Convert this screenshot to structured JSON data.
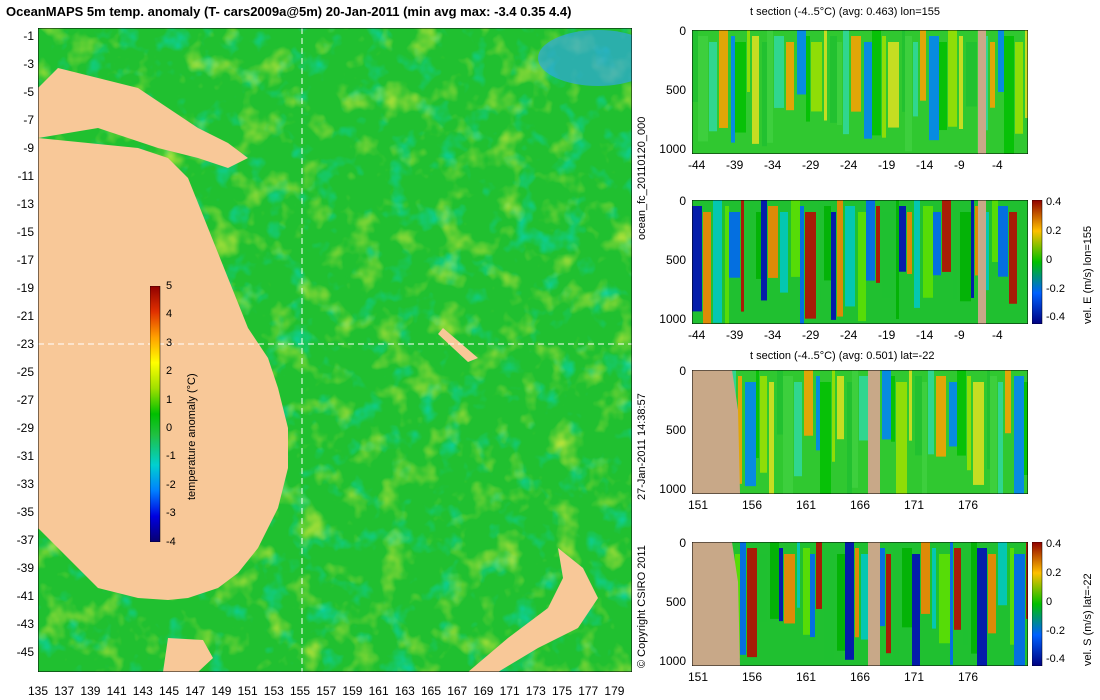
{
  "title": "OceanMAPS 5m temp. anomaly (T- cars2009a@5m) 20-Jan-2011 (min avg max: -3.4 0.35 4.4)",
  "map": {
    "lat_labels": [
      "-1",
      "-3",
      "-5",
      "-7",
      "-9",
      "-11",
      "-13",
      "-15",
      "-17",
      "-19",
      "-21",
      "-23",
      "-25",
      "-27",
      "-29",
      "-31",
      "-33",
      "-35",
      "-37",
      "-39",
      "-41",
      "-43",
      "-45"
    ],
    "lon_labels": [
      "135",
      "137",
      "139",
      "141",
      "143",
      "145",
      "147",
      "149",
      "151",
      "153",
      "155",
      "157",
      "159",
      "161",
      "163",
      "165",
      "167",
      "169",
      "171",
      "173",
      "175",
      "177",
      "179"
    ],
    "colorbar": {
      "label": "temperature anomaly (°C)",
      "ticks": [
        "5",
        "4",
        "3",
        "2",
        "1",
        "0",
        "-1",
        "-2",
        "-3",
        "-4"
      ],
      "colors": [
        "#080080",
        "#0000d0",
        "#0050ff",
        "#00a0ff",
        "#00d8d0",
        "#30d040",
        "#00c000",
        "#a0e000",
        "#ffff00",
        "#ffc000",
        "#ff8000",
        "#e03000",
        "#a00000"
      ]
    },
    "crosshair": {
      "lon": 155,
      "lat": -22
    }
  },
  "panels": [
    {
      "title": "t section (-4..5°C) (avg: 0.463) lon=155",
      "y_ticks": [
        "0",
        "500",
        "1000"
      ],
      "x_ticks": [
        "-44",
        "-39",
        "-34",
        "-29",
        "-24",
        "-19",
        "-14",
        "-9",
        "-4"
      ],
      "colorbar": null
    },
    {
      "title": "",
      "y_ticks": [
        "0",
        "500",
        "1000"
      ],
      "x_ticks": [
        "-44",
        "-39",
        "-34",
        "-29",
        "-24",
        "-19",
        "-14",
        "-9",
        "-4"
      ],
      "colorbar": {
        "label": "vel. E (m/s) lon=155",
        "ticks": [
          "0.4",
          "0.2",
          "0",
          "-0.2",
          "-0.4"
        ]
      }
    },
    {
      "title": "t section (-4..5°C) (avg: 0.501) lat=-22",
      "y_ticks": [
        "0",
        "500",
        "1000"
      ],
      "x_ticks": [
        "151",
        "156",
        "161",
        "166",
        "171",
        "176"
      ],
      "colorbar": null
    },
    {
      "title": "",
      "y_ticks": [
        "0",
        "500",
        "1000"
      ],
      "x_ticks": [
        "151",
        "156",
        "161",
        "166",
        "171",
        "176"
      ],
      "colorbar": {
        "label": "vel. S (m/s) lat=-22",
        "ticks": [
          "0.4",
          "0.2",
          "0",
          "-0.2",
          "-0.4"
        ]
      }
    }
  ],
  "side_texts": {
    "run_id": "ocean_fc_20110120_000",
    "date": "27-Jan-2011 14:38:57",
    "copyright": "© Copyright CSIRO 2011"
  }
}
